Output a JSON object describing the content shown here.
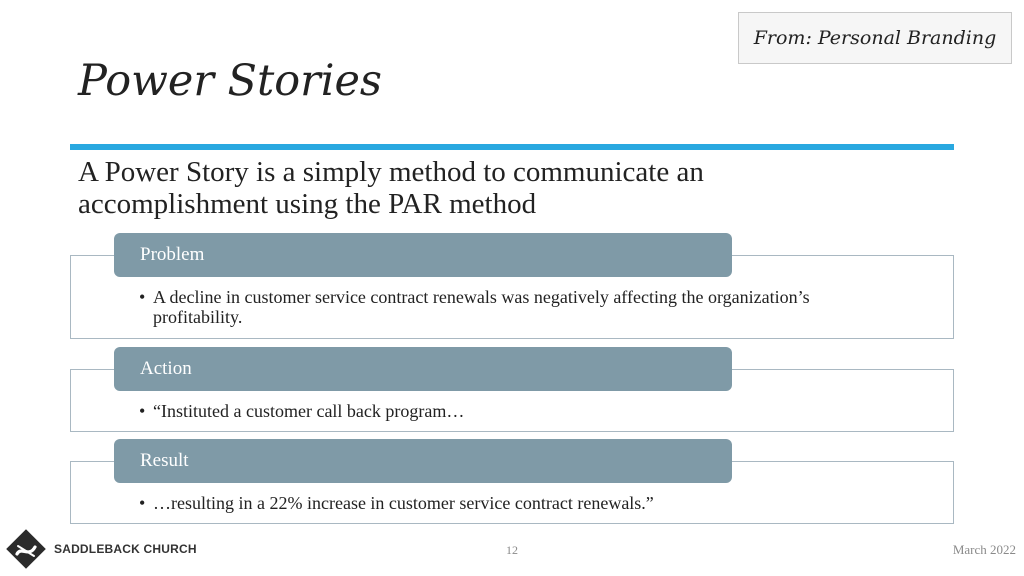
{
  "source_label": "From: Personal Branding",
  "title": "Power Stories",
  "subtitle": "A Power Story is a simply method to communicate an accomplishment using the PAR method",
  "par": [
    {
      "heading": "Problem",
      "bullet": "A decline in customer service contract renewals was negatively affecting the organization’s profitability."
    },
    {
      "heading": "Action",
      "bullet": "“Instituted a customer call back program…"
    },
    {
      "heading": "Result",
      "bullet": "…resulting in a 22% increase in customer service contract renewals.”"
    }
  ],
  "footer": {
    "logo_text": "SADDLEBACK CHURCH",
    "page_number": "12",
    "date": "March 2022"
  },
  "colors": {
    "accent_rule": "#29a8e0",
    "tab_fill": "#7f9aa7",
    "box_border": "#a9b8c2"
  }
}
